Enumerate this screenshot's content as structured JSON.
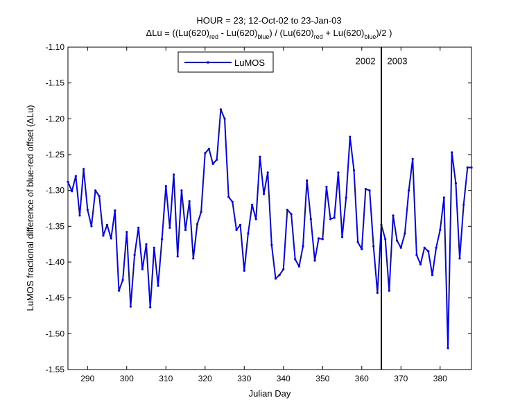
{
  "chart_data": {
    "type": "line",
    "title_line1": "HOUR = 23; 12-Oct-02 to 23-Jan-03",
    "title_line2": {
      "p1": "ΔLu = ((Lu(620)",
      "s1": "red",
      "p2": " - Lu(620)",
      "s2": "blue",
      "p3": ") / (Lu(620)",
      "s3": "red",
      "p4": " + Lu(620)",
      "s4": "blue",
      "p5": ")/2  )"
    },
    "xlabel": "Julian Day",
    "ylabel": "LuMOS fractional difference of blue-red offset (ΔLu)",
    "xlim": [
      285,
      388
    ],
    "ylim": [
      -1.55,
      -1.1
    ],
    "xticks": [
      290,
      300,
      310,
      320,
      330,
      340,
      350,
      360,
      370,
      380
    ],
    "xtick_labels": [
      "290",
      "300",
      "310",
      "320",
      "330",
      "340",
      "350",
      "360",
      "370",
      "380"
    ],
    "yticks": [
      -1.1,
      -1.15,
      -1.2,
      -1.25,
      -1.3,
      -1.35,
      -1.4,
      -1.45,
      -1.5,
      -1.55
    ],
    "ytick_labels": [
      "-1.10",
      "-1.15",
      "-1.20",
      "-1.25",
      "-1.30",
      "-1.35",
      "-1.40",
      "-1.45",
      "-1.50",
      "-1.55"
    ],
    "grid": false,
    "legend_position": "top-left",
    "vline_x": 365,
    "annotations": [
      {
        "text": "2002",
        "x": 363.5,
        "y": -1.12,
        "anchor": "end"
      },
      {
        "text": "2003",
        "x": 366.5,
        "y": -1.12,
        "anchor": "start"
      }
    ],
    "series": [
      {
        "name": "LuMOS",
        "color": "#0000ff",
        "x": [
          285,
          286,
          287,
          288,
          289,
          290,
          291,
          292,
          293,
          294,
          295,
          296,
          297,
          298,
          299,
          300,
          301,
          302,
          303,
          304,
          305,
          306,
          307,
          308,
          309,
          310,
          311,
          312,
          313,
          314,
          315,
          316,
          317,
          318,
          319,
          320,
          321,
          322,
          323,
          324,
          325,
          326,
          327,
          328,
          329,
          330,
          331,
          332,
          333,
          334,
          335,
          336,
          337,
          338,
          339,
          340,
          341,
          342,
          343,
          344,
          345,
          346,
          347,
          348,
          349,
          350,
          351,
          352,
          353,
          354,
          355,
          356,
          357,
          358,
          359,
          360,
          361,
          362,
          363,
          364,
          365,
          366,
          367,
          368,
          369,
          370,
          371,
          372,
          373,
          374,
          375,
          376,
          377,
          378,
          379,
          380,
          381,
          382,
          383,
          384,
          385,
          386,
          387,
          388
        ],
        "y": [
          -1.288,
          -1.301,
          -1.28,
          -1.335,
          -1.27,
          -1.327,
          -1.35,
          -1.3,
          -1.308,
          -1.363,
          -1.348,
          -1.367,
          -1.328,
          -1.44,
          -1.425,
          -1.358,
          -1.462,
          -1.39,
          -1.352,
          -1.41,
          -1.375,
          -1.463,
          -1.38,
          -1.433,
          -1.368,
          -1.294,
          -1.352,
          -1.278,
          -1.392,
          -1.3,
          -1.355,
          -1.315,
          -1.395,
          -1.347,
          -1.33,
          -1.248,
          -1.242,
          -1.263,
          -1.257,
          -1.187,
          -1.2,
          -1.309,
          -1.316,
          -1.355,
          -1.348,
          -1.412,
          -1.36,
          -1.32,
          -1.34,
          -1.253,
          -1.305,
          -1.275,
          -1.376,
          -1.423,
          -1.418,
          -1.41,
          -1.327,
          -1.333,
          -1.396,
          -1.406,
          -1.378,
          -1.286,
          -1.34,
          -1.398,
          -1.367,
          -1.368,
          -1.295,
          -1.34,
          -1.338,
          -1.275,
          -1.365,
          -1.31,
          -1.225,
          -1.272,
          -1.372,
          -1.382,
          -1.298,
          -1.3,
          -1.378,
          -1.443,
          -1.348,
          -1.368,
          -1.44,
          -1.335,
          -1.37,
          -1.38,
          -1.36,
          -1.3,
          -1.256,
          -1.39,
          -1.403,
          -1.38,
          -1.385,
          -1.418,
          -1.38,
          -1.355,
          -1.31,
          -1.52,
          -1.247,
          -1.29,
          -1.395,
          -1.32,
          -1.268,
          -1.268
        ]
      }
    ]
  }
}
